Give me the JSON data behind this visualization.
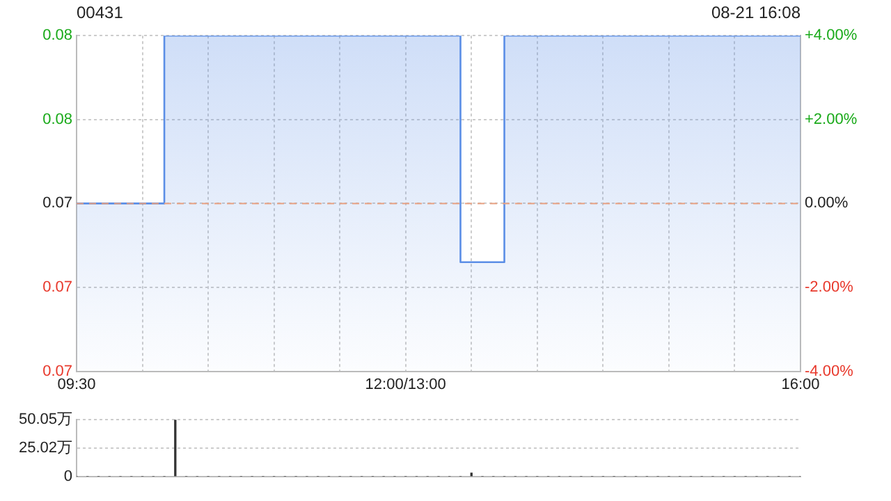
{
  "chart_data": [
    {
      "type": "step",
      "title": "00431",
      "annotations": [
        "08-21 16:08"
      ],
      "categories": [
        "09:30",
        null,
        null,
        null,
        null,
        null,
        null,
        null,
        null,
        null,
        null,
        null,
        null,
        null,
        null,
        null,
        null,
        null,
        null,
        null,
        null,
        null,
        null,
        null,
        null,
        null,
        null,
        null,
        null,
        null,
        "12:00/13:00",
        null,
        null,
        null,
        null,
        null,
        null,
        null,
        null,
        null,
        null,
        null,
        null,
        null,
        null,
        null,
        null,
        null,
        null,
        null,
        null,
        null,
        null,
        null,
        null,
        null,
        null,
        null,
        null,
        null,
        null,
        null,
        null,
        null,
        null,
        null,
        "16:00"
      ],
      "series": [
        {
          "color": "#5b8ee6",
          "axis": "y2",
          "values": [
            0,
            0,
            0,
            0,
            0,
            0,
            0,
            0,
            0,
            4,
            4,
            4,
            4,
            4,
            4,
            4,
            4,
            4,
            4,
            4,
            4,
            4,
            4,
            4,
            4,
            4,
            4,
            4,
            4,
            4,
            4,
            4,
            4,
            4,
            4,
            4,
            -1.4,
            -1.4,
            -1.4,
            -1.4,
            4,
            4,
            4,
            4,
            4,
            4,
            4,
            4,
            4,
            4,
            4,
            4,
            4,
            4,
            4,
            4,
            4,
            4,
            4,
            4,
            4,
            4,
            4,
            4,
            4,
            4,
            4
          ]
        }
      ],
      "ylim": [
        0.07104,
        0.07696
      ],
      "yticks": [
        {
          "value": 0.07104,
          "label": "0.07"
        },
        {
          "value": 0.07252,
          "label": "0.07"
        },
        {
          "value": 0.074,
          "label": "0.07"
        },
        {
          "value": 0.07548,
          "label": "0.08"
        },
        {
          "value": 0.07696,
          "label": "0.08"
        }
      ],
      "y2lim": [
        -4,
        4
      ],
      "y2ticks": [
        {
          "value": -4,
          "label": "-4.00%"
        },
        {
          "value": -2,
          "label": "-2.00%"
        },
        {
          "value": 0,
          "label": "0.00%"
        },
        {
          "value": 2,
          "label": "+2.00%"
        },
        {
          "value": 4,
          "label": "+4.00%"
        }
      ],
      "ref_lines": [
        {
          "axis": "y2",
          "value": 0,
          "color": "#e8a080",
          "line_style": "dashed"
        }
      ],
      "grid": true
    },
    {
      "type": "bar",
      "color": "#333333",
      "categories": [
        null,
        null,
        null,
        null,
        null,
        null,
        null,
        null,
        null,
        null,
        null,
        null,
        null,
        null,
        null,
        null,
        null,
        null,
        null,
        null,
        null,
        null,
        null,
        null,
        null,
        null,
        null,
        null,
        null,
        null,
        null,
        null,
        null,
        null,
        null,
        null,
        null,
        null,
        null,
        null,
        null,
        null,
        null,
        null,
        null,
        null,
        null,
        null,
        null,
        null,
        null,
        null,
        null,
        null,
        null,
        null,
        null,
        null,
        null,
        null,
        null,
        null,
        null,
        null,
        null,
        null,
        null
      ],
      "values": [
        0,
        0,
        0,
        0,
        0,
        0,
        0,
        0,
        0,
        50,
        0,
        0,
        0,
        0,
        0,
        0,
        0,
        0,
        0,
        0,
        0,
        0,
        0,
        0,
        0,
        0,
        0,
        0,
        0,
        0,
        0,
        0,
        0,
        0,
        0,
        0,
        3,
        0,
        0,
        0,
        0,
        0,
        0,
        0,
        0,
        0,
        0,
        0,
        0,
        0,
        0,
        0,
        0,
        0,
        0,
        0,
        0,
        0,
        0,
        0,
        0,
        0,
        0,
        0,
        0,
        0,
        0
      ],
      "ylim": [
        0,
        50.05
      ],
      "yticks": [
        0,
        {
          "value": 25.02,
          "label": "25.02万"
        },
        {
          "value": 50.05,
          "label": "50.05万"
        }
      ],
      "grid": "y",
      "tick_labels": "y"
    }
  ]
}
